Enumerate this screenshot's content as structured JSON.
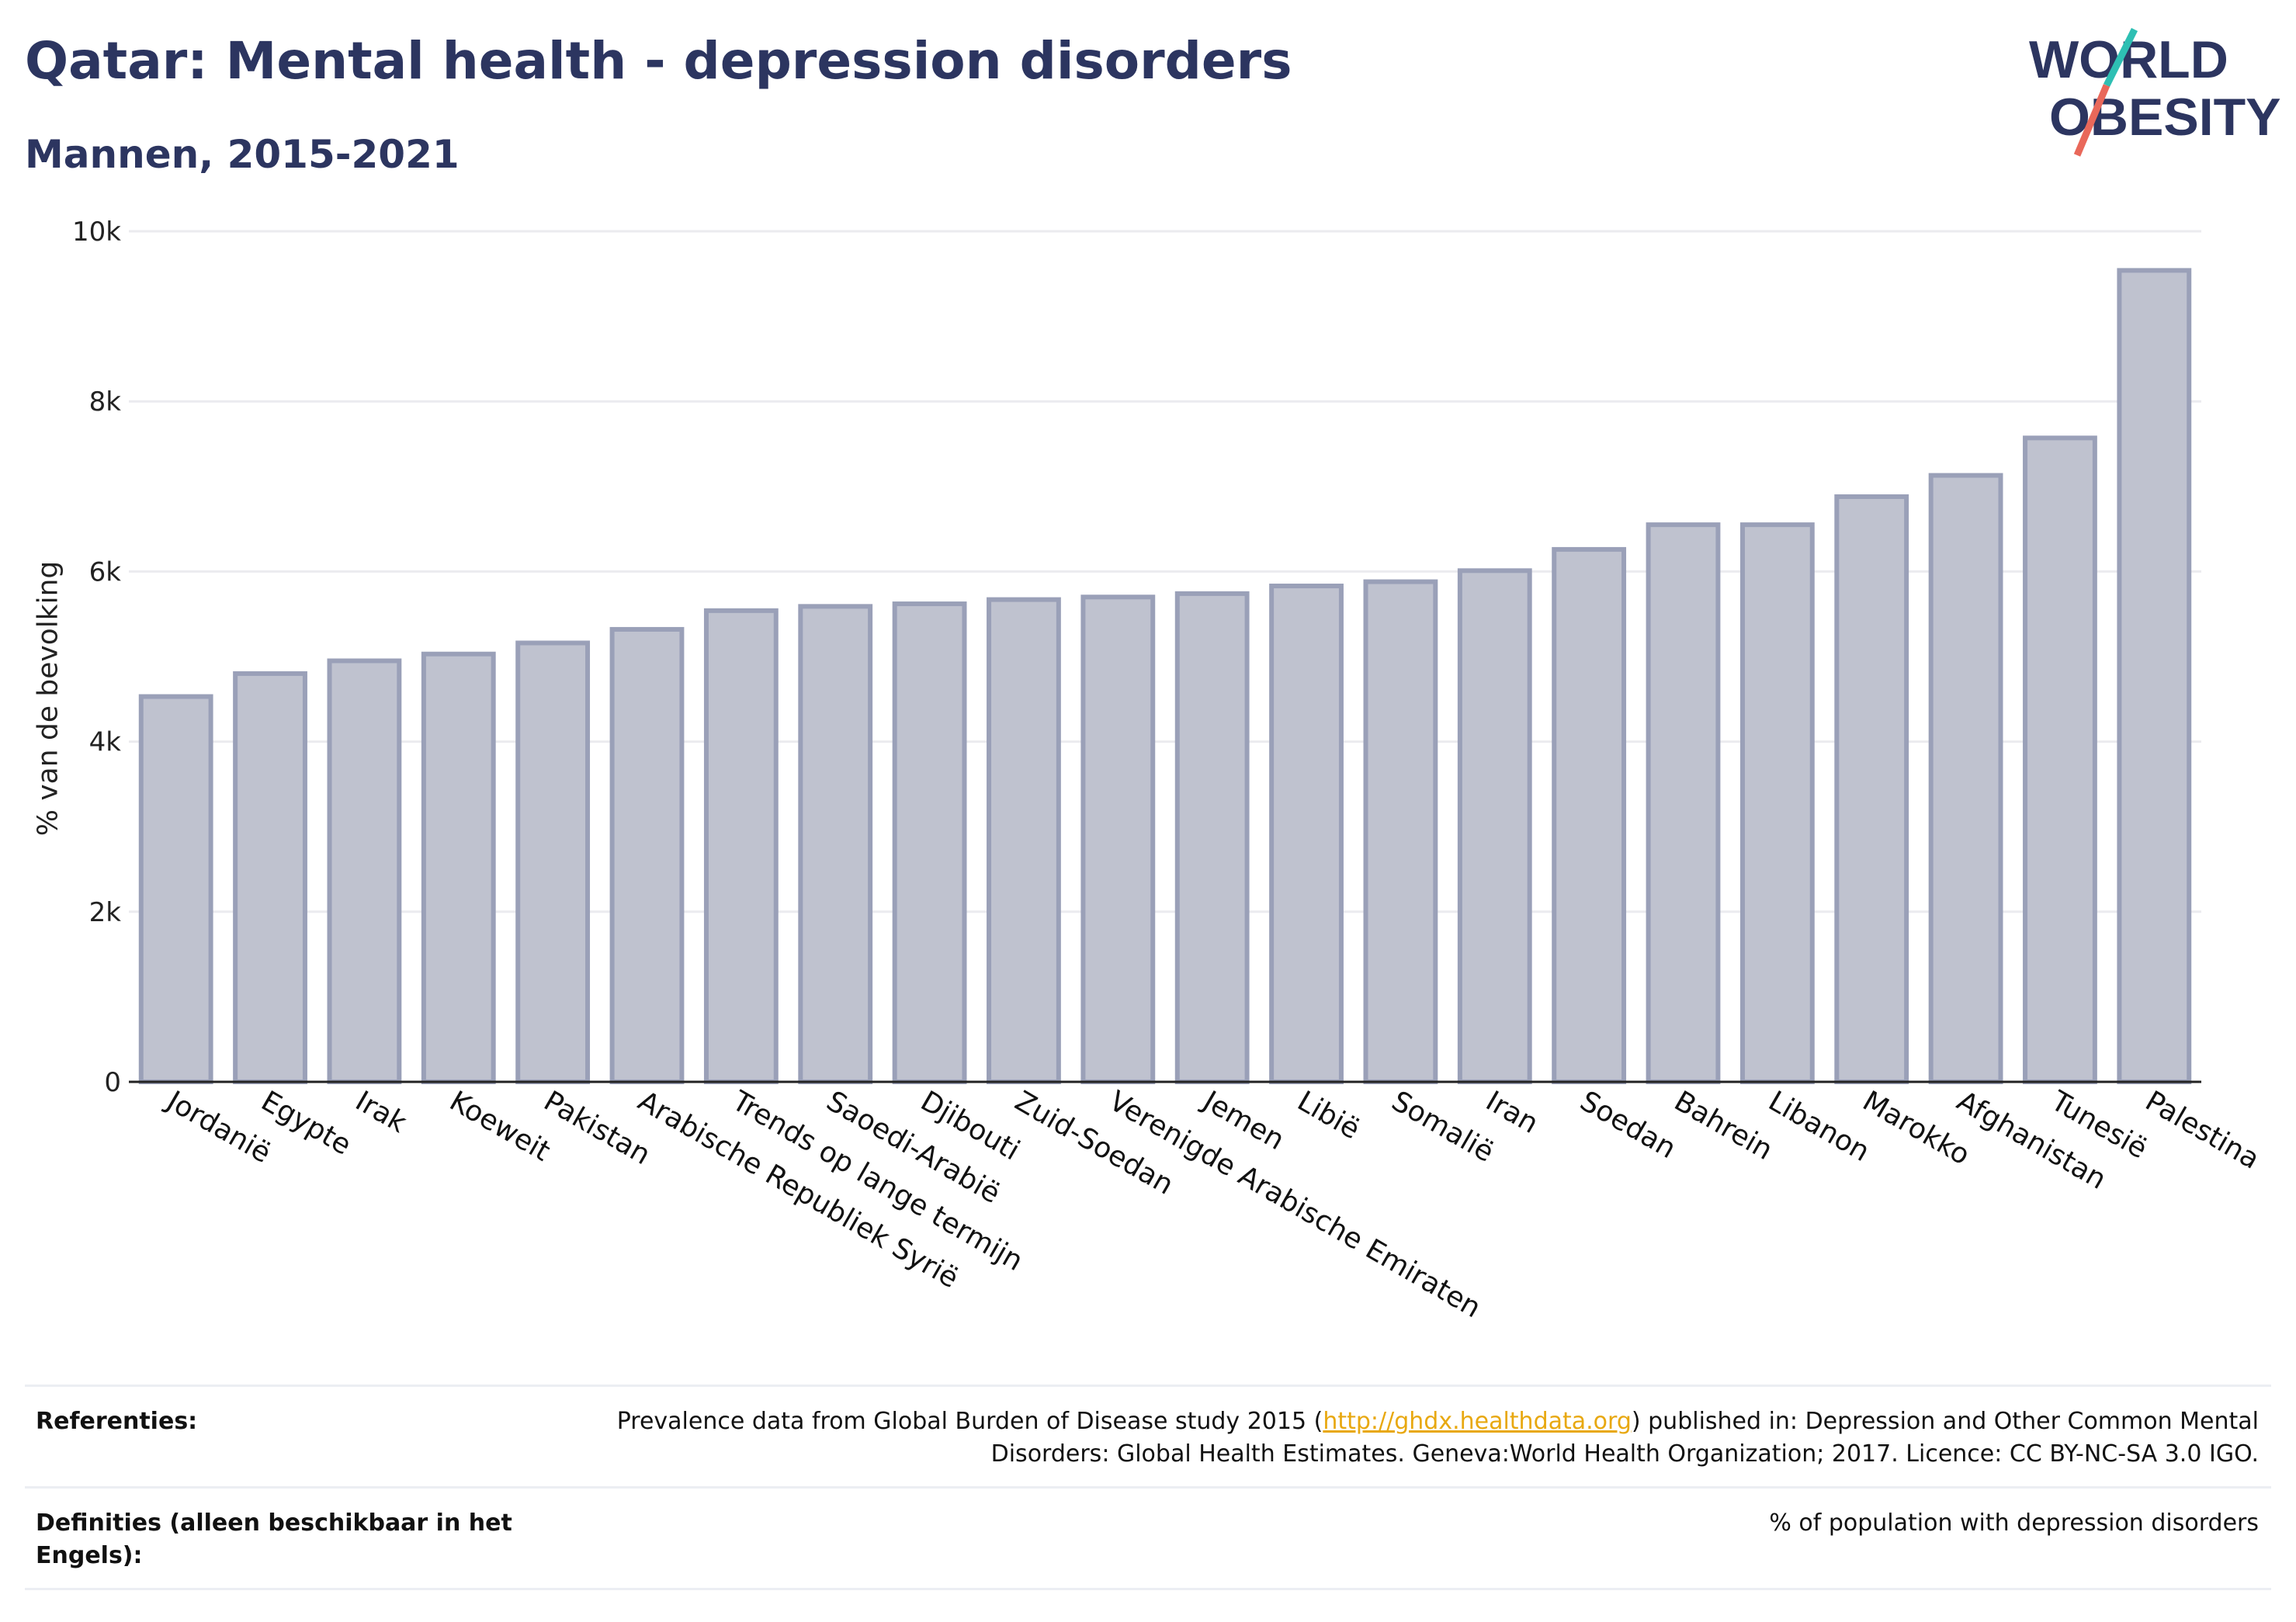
{
  "title": "Qatar: Mental health - depression disorders",
  "subtitle": "Mannen, 2015-2021",
  "logo": {
    "line1": "WORLD",
    "line2": "OBESITY"
  },
  "chart_data": {
    "type": "bar",
    "ylabel": "% van de bevolking",
    "ylim": [
      0,
      10000
    ],
    "yticks": [
      0,
      2000,
      4000,
      6000,
      8000,
      10000
    ],
    "ytick_labels": [
      "0",
      "2k",
      "4k",
      "6k",
      "8k",
      "10k"
    ],
    "grid": true,
    "bar_color": "#bfc2cf",
    "bar_edge_color": "#9aa0b8",
    "categories": [
      "Jordanië",
      "Egypte",
      "Irak",
      "Koeweit",
      "Pakistan",
      "Arabische Republiek Syrië",
      "Trends op lange termijn",
      "Saoedi-Arabië",
      "Djibouti",
      "Zuid-Soedan",
      "Verenigde Arabische Emiraten",
      "Jemen",
      "Libië",
      "Somalië",
      "Iran",
      "Soedan",
      "Bahrein",
      "Libanon",
      "Marokko",
      "Afghanistan",
      "Tunesië",
      "Palestina"
    ],
    "values": [
      4530,
      4800,
      4950,
      5030,
      5160,
      5320,
      5540,
      5590,
      5620,
      5670,
      5700,
      5740,
      5830,
      5880,
      6010,
      6260,
      6550,
      6550,
      6880,
      7130,
      7570,
      9540
    ]
  },
  "footer": {
    "references_label": "Referenties:",
    "references_pre": "Prevalence data from Global Burden of Disease study 2015 (",
    "references_link": "http://ghdx.healthdata.org",
    "references_post": ") published in: Depression and Other Common Mental Disorders: Global Health Estimates. Geneva:World Health Organization; 2017. Licence: CC BY-NC-SA 3.0 IGO.",
    "definitions_label": "Definities (alleen beschikbaar in het Engels):",
    "definitions_text": "% of population with depression disorders"
  }
}
